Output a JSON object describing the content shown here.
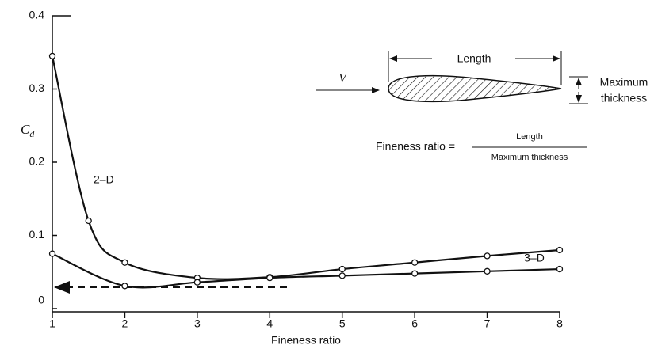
{
  "chart_data": {
    "type": "line",
    "x_label": "Fineness ratio",
    "y_label": "C",
    "y_label_subscript": "d",
    "xlim": [
      1,
      8
    ],
    "ylim": [
      0,
      0.4
    ],
    "xticks": [
      1,
      2,
      3,
      4,
      5,
      6,
      7,
      8
    ],
    "yticks": [
      0,
      0.1,
      0.2,
      0.3,
      0.4
    ],
    "series": [
      {
        "name": "2–D",
        "color": "#111111",
        "x": [
          1,
          1.5,
          2,
          3,
          4,
          5,
          6,
          7,
          8
        ],
        "values": [
          0.345,
          0.12,
          0.063,
          0.042,
          0.043,
          0.054,
          0.063,
          0.072,
          0.08
        ]
      },
      {
        "name": "3–D",
        "color": "#111111",
        "x": [
          1,
          2,
          3,
          4,
          5,
          6,
          7,
          8
        ],
        "values": [
          0.075,
          0.031,
          0.036,
          0.042,
          0.045,
          0.048,
          0.051,
          0.054
        ]
      }
    ],
    "annotations": {
      "velocity": "V",
      "length": "Length",
      "thickness_line1": "Maximum",
      "thickness_line2": "thickness",
      "formula_lhs": "Fineness ratio =",
      "formula_numerator": "Length",
      "formula_denominator": "Maximum thickness"
    }
  }
}
